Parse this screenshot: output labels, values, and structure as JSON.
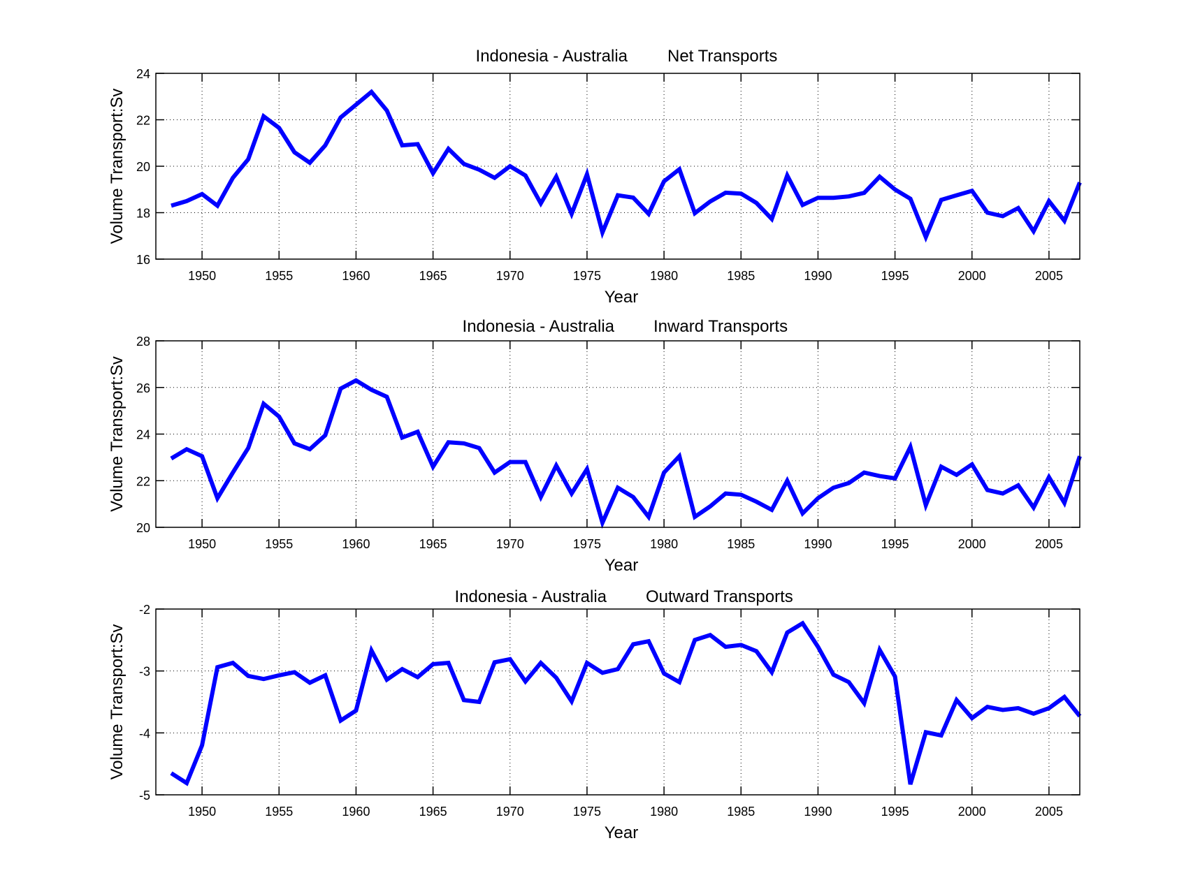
{
  "figure": {
    "line_color": "#0000ff",
    "background": "#ffffff"
  },
  "chart_data": [
    {
      "type": "line",
      "title_left": "Indonesia - Australia",
      "title_right": "Net Transports",
      "xlabel": "Year",
      "ylabel": "Volume Transport:Sv",
      "xlim": [
        1947,
        2007
      ],
      "ylim": [
        16,
        24
      ],
      "xticks": [
        1950,
        1955,
        1960,
        1965,
        1970,
        1975,
        1980,
        1985,
        1990,
        1995,
        2000,
        2005
      ],
      "xtick_labels": [
        "1950",
        "1955",
        "1960",
        "1965",
        "1970",
        "1975",
        "1980",
        "1985",
        "1990",
        "1995",
        "2000",
        "2005"
      ],
      "yticks": [
        16,
        18,
        20,
        22,
        24
      ],
      "ytick_labels": [
        "16",
        "18",
        "20",
        "22",
        "24"
      ],
      "grid": true,
      "x": [
        1948,
        1949,
        1950,
        1951,
        1952,
        1953,
        1954,
        1955,
        1956,
        1957,
        1958,
        1959,
        1960,
        1961,
        1962,
        1963,
        1964,
        1965,
        1966,
        1967,
        1968,
        1969,
        1970,
        1971,
        1972,
        1973,
        1974,
        1975,
        1976,
        1977,
        1978,
        1979,
        1980,
        1981,
        1982,
        1983,
        1984,
        1985,
        1986,
        1987,
        1988,
        1989,
        1990,
        1991,
        1992,
        1993,
        1994,
        1995,
        1996,
        1997,
        1998,
        1999,
        2000,
        2001,
        2002,
        2003,
        2004,
        2005,
        2006,
        2007
      ],
      "series": [
        {
          "name": "Net Transports",
          "values": [
            18.3,
            18.5,
            18.8,
            18.3,
            19.5,
            20.3,
            22.15,
            21.65,
            20.6,
            20.15,
            20.9,
            22.1,
            22.65,
            23.2,
            22.4,
            20.9,
            20.95,
            19.7,
            20.75,
            20.1,
            19.85,
            19.5,
            20.0,
            19.6,
            18.4,
            19.55,
            17.95,
            19.65,
            17.15,
            18.75,
            18.65,
            17.95,
            19.35,
            19.87,
            17.98,
            18.48,
            18.86,
            18.82,
            18.42,
            17.73,
            19.6,
            18.33,
            18.64,
            18.64,
            18.7,
            18.85,
            19.55,
            19.0,
            18.6,
            16.95,
            18.55,
            18.75,
            18.94,
            18.0,
            17.85,
            18.2,
            17.2,
            18.5,
            17.65,
            19.3
          ]
        }
      ]
    },
    {
      "type": "line",
      "title_left": "Indonesia - Australia",
      "title_right": "Inward Transports",
      "xlabel": "Year",
      "ylabel": "Volume Transport:Sv",
      "xlim": [
        1947,
        2007
      ],
      "ylim": [
        20,
        28
      ],
      "xticks": [
        1950,
        1955,
        1960,
        1965,
        1970,
        1975,
        1980,
        1985,
        1990,
        1995,
        2000,
        2005
      ],
      "xtick_labels": [
        "1950",
        "1955",
        "1960",
        "1965",
        "1970",
        "1975",
        "1980",
        "1985",
        "1990",
        "1995",
        "2000",
        "2005"
      ],
      "yticks": [
        20,
        22,
        24,
        26,
        28
      ],
      "ytick_labels": [
        "20",
        "22",
        "24",
        "26",
        "28"
      ],
      "grid": true,
      "x": [
        1948,
        1949,
        1950,
        1951,
        1952,
        1953,
        1954,
        1955,
        1956,
        1957,
        1958,
        1959,
        1960,
        1961,
        1962,
        1963,
        1964,
        1965,
        1966,
        1967,
        1968,
        1969,
        1970,
        1971,
        1972,
        1973,
        1974,
        1975,
        1976,
        1977,
        1978,
        1979,
        1980,
        1981,
        1982,
        1983,
        1984,
        1985,
        1986,
        1987,
        1988,
        1989,
        1990,
        1991,
        1992,
        1993,
        1994,
        1995,
        1996,
        1997,
        1998,
        1999,
        2000,
        2001,
        2002,
        2003,
        2004,
        2005,
        2006,
        2007
      ],
      "series": [
        {
          "name": "Inward Transports",
          "values": [
            22.95,
            23.35,
            23.05,
            21.25,
            22.35,
            23.4,
            25.3,
            24.75,
            23.6,
            23.35,
            23.95,
            25.95,
            26.3,
            25.9,
            25.6,
            23.85,
            24.1,
            22.6,
            23.65,
            23.6,
            23.4,
            22.35,
            22.8,
            22.8,
            21.3,
            22.65,
            21.45,
            22.5,
            20.2,
            21.7,
            21.3,
            20.45,
            22.35,
            23.05,
            20.45,
            20.9,
            21.45,
            21.4,
            21.1,
            20.75,
            22.0,
            20.6,
            21.25,
            21.7,
            21.9,
            22.35,
            22.2,
            22.1,
            23.45,
            20.95,
            22.6,
            22.25,
            22.7,
            21.6,
            21.45,
            21.8,
            20.85,
            22.15,
            21.05,
            23.05
          ]
        }
      ]
    },
    {
      "type": "line",
      "title_left": "Indonesia - Australia",
      "title_right": "Outward Transports",
      "xlabel": "Year",
      "ylabel": "Volume Transport:Sv",
      "xlim": [
        1947,
        2007
      ],
      "ylim": [
        -5,
        -2
      ],
      "xticks": [
        1950,
        1955,
        1960,
        1965,
        1970,
        1975,
        1980,
        1985,
        1990,
        1995,
        2000,
        2005
      ],
      "xtick_labels": [
        "1950",
        "1955",
        "1960",
        "1965",
        "1970",
        "1975",
        "1980",
        "1985",
        "1990",
        "1995",
        "2000",
        "2005"
      ],
      "yticks": [
        -5,
        -4,
        -3,
        -2
      ],
      "ytick_labels": [
        "-5",
        "-4",
        "-3",
        "-2"
      ],
      "grid": true,
      "x": [
        1948,
        1949,
        1950,
        1951,
        1952,
        1953,
        1954,
        1955,
        1956,
        1957,
        1958,
        1959,
        1960,
        1961,
        1962,
        1963,
        1964,
        1965,
        1966,
        1967,
        1968,
        1969,
        1970,
        1971,
        1972,
        1973,
        1974,
        1975,
        1976,
        1977,
        1978,
        1979,
        1980,
        1981,
        1982,
        1983,
        1984,
        1985,
        1986,
        1987,
        1988,
        1989,
        1990,
        1991,
        1992,
        1993,
        1994,
        1995,
        1996,
        1997,
        1998,
        1999,
        2000,
        2001,
        2002,
        2003,
        2004,
        2005,
        2006,
        2007
      ],
      "series": [
        {
          "name": "Outward Transports",
          "values": [
            -4.65,
            -4.81,
            -4.2,
            -2.94,
            -2.87,
            -3.08,
            -3.13,
            -3.07,
            -3.02,
            -3.19,
            -3.07,
            -3.8,
            -3.64,
            -2.67,
            -3.14,
            -2.97,
            -3.1,
            -2.89,
            -2.87,
            -3.47,
            -3.5,
            -2.86,
            -2.81,
            -3.17,
            -2.87,
            -3.11,
            -3.49,
            -2.87,
            -3.03,
            -2.97,
            -2.57,
            -2.52,
            -3.04,
            -3.18,
            -2.5,
            -2.42,
            -2.61,
            -2.58,
            -2.68,
            -3.02,
            -2.38,
            -2.23,
            -2.61,
            -3.06,
            -3.18,
            -3.52,
            -2.66,
            -3.09,
            -4.83,
            -3.99,
            -4.04,
            -3.47,
            -3.76,
            -3.58,
            -3.63,
            -3.6,
            -3.69,
            -3.6,
            -3.42,
            -3.73
          ]
        }
      ]
    }
  ]
}
